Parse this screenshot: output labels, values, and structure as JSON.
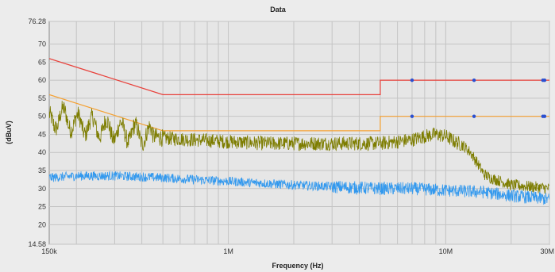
{
  "chart_data": {
    "type": "line",
    "title": "Data",
    "xlabel": "Frequency (Hz)",
    "ylabel": "(dBuV)",
    "xscale": "log",
    "xlim": [
      150000,
      30000000
    ],
    "ylim": [
      14.58,
      76.28
    ],
    "grid": true,
    "x_ticks": [
      {
        "value": 150000,
        "label": "150k"
      },
      {
        "value": 1000000,
        "label": "1M"
      },
      {
        "value": 10000000,
        "label": "10M"
      },
      {
        "value": 30000000,
        "label": "30M"
      }
    ],
    "y_ticks": [
      {
        "value": 14.58,
        "label": "14.58"
      },
      {
        "value": 20,
        "label": "20"
      },
      {
        "value": 25,
        "label": "25"
      },
      {
        "value": 30,
        "label": "30"
      },
      {
        "value": 35,
        "label": "35"
      },
      {
        "value": 40,
        "label": "40"
      },
      {
        "value": 45,
        "label": "45"
      },
      {
        "value": 50,
        "label": "50"
      },
      {
        "value": 55,
        "label": "55"
      },
      {
        "value": 60,
        "label": "60"
      },
      {
        "value": 65,
        "label": "65"
      },
      {
        "value": 70,
        "label": "70"
      },
      {
        "value": 76.28,
        "label": "76.28"
      }
    ],
    "series": [
      {
        "color": "#e8403a",
        "style": "limit",
        "x": [
          150000,
          500000,
          5000000,
          5000000,
          30000000
        ],
        "y": [
          66,
          56,
          56,
          60,
          60
        ]
      },
      {
        "color": "#f5a030",
        "style": "limit",
        "x": [
          150000,
          500000,
          5000000,
          5000000,
          30000000
        ],
        "y": [
          56,
          46,
          46,
          50,
          50
        ]
      },
      {
        "color": "#7d7d00",
        "style": "noisy",
        "x": [
          150000,
          170000,
          200000,
          250000,
          300000,
          400000,
          500000,
          700000,
          1000000,
          1500000,
          2000000,
          3000000,
          4000000,
          5000000,
          6000000,
          7000000,
          8000000,
          9000000,
          10000000,
          11000000,
          12000000,
          13000000,
          14000000,
          15000000,
          16000000,
          18000000,
          20000000,
          25000000,
          30000000
        ],
        "y": [
          48,
          50,
          48,
          47,
          46,
          45,
          44,
          43.5,
          43,
          42.5,
          42.5,
          42.5,
          42.5,
          42.5,
          43,
          43.5,
          44.5,
          45,
          44.5,
          43,
          42,
          40,
          37,
          34,
          33,
          32,
          31,
          30.5,
          30
        ]
      },
      {
        "color": "#3399ee",
        "style": "noisy",
        "x": [
          150000,
          200000,
          300000,
          500000,
          700000,
          1000000,
          2000000,
          3000000,
          5000000,
          7000000,
          10000000,
          15000000,
          20000000,
          25000000,
          30000000
        ],
        "y": [
          33,
          33.5,
          33.5,
          33,
          32.5,
          32,
          31,
          30.5,
          30,
          30,
          29.5,
          29,
          28,
          27.5,
          27
        ]
      }
    ],
    "markers": {
      "color": "#2a4fd0",
      "points": [
        {
          "x": 7000000,
          "y": 60
        },
        {
          "x": 13500000,
          "y": 60
        },
        {
          "x": 28000000,
          "y": 60
        },
        {
          "x": 28500000,
          "y": 60
        },
        {
          "x": 7000000,
          "y": 50
        },
        {
          "x": 13500000,
          "y": 50
        },
        {
          "x": 28000000,
          "y": 50
        },
        {
          "x": 28500000,
          "y": 50
        }
      ]
    }
  }
}
